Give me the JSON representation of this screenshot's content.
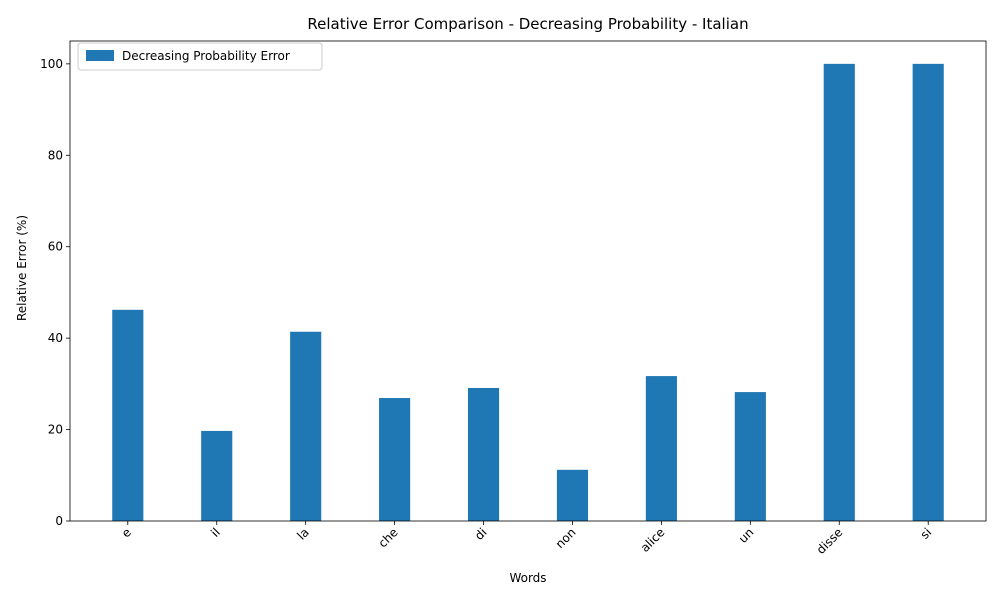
{
  "chart_data": {
    "type": "bar",
    "title": "Relative Error Comparison - Decreasing Probability - Italian",
    "xlabel": "Words",
    "ylabel": "Relative Error (%)",
    "categories": [
      "e",
      "il",
      "la",
      "che",
      "di",
      "non",
      "alice",
      "un",
      "disse",
      "si"
    ],
    "series": [
      {
        "name": "Decreasing Probability Error",
        "values": [
          46.2,
          19.7,
          41.4,
          26.9,
          29.1,
          11.2,
          31.7,
          28.2,
          100.0,
          100.0
        ],
        "color": "#1f77b4"
      }
    ],
    "ylim": [
      0,
      105
    ],
    "yticks": [
      0,
      20,
      40,
      60,
      80,
      100
    ],
    "xtick_rotation": 45,
    "grid": false,
    "legend_position": "top-left"
  }
}
